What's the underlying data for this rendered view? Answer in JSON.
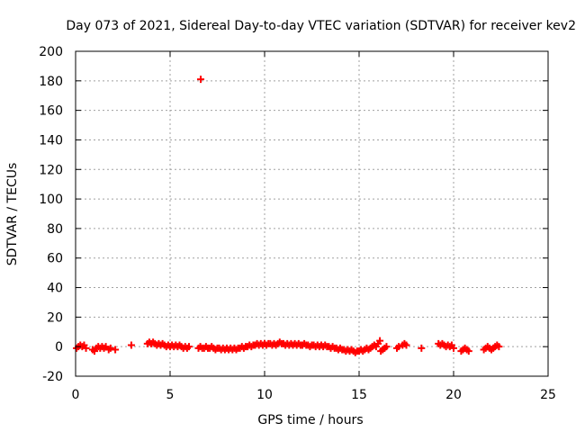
{
  "chart_data": {
    "type": "scatter",
    "title": "Day 073 of 2021, Sidereal Day-to-day VTEC variation (SDTVAR) for receiver kev2",
    "xlabel": "GPS time / hours",
    "ylabel": "SDTVAR / TECUs",
    "xlim": [
      0,
      25
    ],
    "ylim": [
      -20,
      200
    ],
    "xticks": [
      0,
      5,
      10,
      15,
      20,
      25
    ],
    "yticks": [
      -20,
      0,
      20,
      40,
      60,
      80,
      100,
      120,
      140,
      160,
      180,
      200
    ],
    "grid": true,
    "marker": "+",
    "color": "#ff0000",
    "series": [
      {
        "name": "SDTVAR",
        "points": [
          [
            0.05,
            -1
          ],
          [
            0.15,
            0
          ],
          [
            0.25,
            1
          ],
          [
            0.35,
            0
          ],
          [
            0.45,
            1
          ],
          [
            0.55,
            -1
          ],
          [
            0.9,
            -2
          ],
          [
            1.0,
            -3
          ],
          [
            1.1,
            -1
          ],
          [
            1.2,
            0
          ],
          [
            1.3,
            -1
          ],
          [
            1.4,
            0
          ],
          [
            1.5,
            -1
          ],
          [
            1.6,
            0
          ],
          [
            1.75,
            -2
          ],
          [
            1.85,
            -1
          ],
          [
            2.1,
            -2
          ],
          [
            2.95,
            1
          ],
          [
            3.8,
            2
          ],
          [
            3.9,
            3
          ],
          [
            4.0,
            2
          ],
          [
            4.1,
            3
          ],
          [
            4.2,
            2
          ],
          [
            4.3,
            1
          ],
          [
            4.4,
            2
          ],
          [
            4.5,
            1
          ],
          [
            4.6,
            2
          ],
          [
            4.7,
            1
          ],
          [
            4.8,
            0
          ],
          [
            4.9,
            1
          ],
          [
            5.0,
            0
          ],
          [
            5.1,
            1
          ],
          [
            5.2,
            0
          ],
          [
            5.3,
            1
          ],
          [
            5.4,
            0
          ],
          [
            5.5,
            1
          ],
          [
            5.6,
            0
          ],
          [
            5.7,
            -1
          ],
          [
            5.8,
            0
          ],
          [
            5.9,
            -1
          ],
          [
            6.0,
            0
          ],
          [
            6.62,
            181
          ],
          [
            6.5,
            -1
          ],
          [
            6.6,
            0
          ],
          [
            6.7,
            -1
          ],
          [
            6.8,
            -1
          ],
          [
            6.9,
            0
          ],
          [
            7.0,
            -1
          ],
          [
            7.1,
            -1
          ],
          [
            7.2,
            0
          ],
          [
            7.3,
            -1
          ],
          [
            7.4,
            -2
          ],
          [
            7.5,
            -1
          ],
          [
            7.6,
            -1
          ],
          [
            7.7,
            -2
          ],
          [
            7.8,
            -1
          ],
          [
            7.9,
            -2
          ],
          [
            8.0,
            -1
          ],
          [
            8.1,
            -2
          ],
          [
            8.2,
            -1
          ],
          [
            8.3,
            -2
          ],
          [
            8.4,
            -1
          ],
          [
            8.5,
            -2
          ],
          [
            8.6,
            -1
          ],
          [
            8.7,
            -1
          ],
          [
            8.8,
            0
          ],
          [
            8.9,
            -1
          ],
          [
            9.0,
            0
          ],
          [
            9.1,
            0
          ],
          [
            9.2,
            1
          ],
          [
            9.3,
            0
          ],
          [
            9.4,
            1
          ],
          [
            9.5,
            1
          ],
          [
            9.6,
            2
          ],
          [
            9.7,
            1
          ],
          [
            9.8,
            2
          ],
          [
            9.9,
            1
          ],
          [
            10.0,
            2
          ],
          [
            10.1,
            1
          ],
          [
            10.2,
            2
          ],
          [
            10.3,
            2
          ],
          [
            10.4,
            1
          ],
          [
            10.5,
            2
          ],
          [
            10.6,
            1
          ],
          [
            10.7,
            2
          ],
          [
            10.8,
            3
          ],
          [
            10.9,
            2
          ],
          [
            11.0,
            2
          ],
          [
            11.1,
            1
          ],
          [
            11.2,
            2
          ],
          [
            11.3,
            1
          ],
          [
            11.4,
            2
          ],
          [
            11.5,
            1
          ],
          [
            11.6,
            2
          ],
          [
            11.7,
            1
          ],
          [
            11.8,
            2
          ],
          [
            11.9,
            1
          ],
          [
            12.0,
            1
          ],
          [
            12.1,
            2
          ],
          [
            12.2,
            1
          ],
          [
            12.3,
            1
          ],
          [
            12.4,
            0
          ],
          [
            12.5,
            1
          ],
          [
            12.6,
            1
          ],
          [
            12.7,
            0
          ],
          [
            12.8,
            1
          ],
          [
            12.9,
            0
          ],
          [
            13.0,
            1
          ],
          [
            13.1,
            0
          ],
          [
            13.2,
            1
          ],
          [
            13.3,
            0
          ],
          [
            13.4,
            0
          ],
          [
            13.5,
            -1
          ],
          [
            13.6,
            0
          ],
          [
            13.7,
            -1
          ],
          [
            13.8,
            -1
          ],
          [
            13.9,
            -2
          ],
          [
            14.0,
            -1
          ],
          [
            14.1,
            -2
          ],
          [
            14.2,
            -2
          ],
          [
            14.3,
            -3
          ],
          [
            14.4,
            -2
          ],
          [
            14.5,
            -3
          ],
          [
            14.6,
            -2
          ],
          [
            14.7,
            -3
          ],
          [
            14.8,
            -4
          ],
          [
            14.9,
            -3
          ],
          [
            15.0,
            -3
          ],
          [
            15.1,
            -2
          ],
          [
            15.2,
            -3
          ],
          [
            15.3,
            -2
          ],
          [
            15.4,
            -1
          ],
          [
            15.5,
            -2
          ],
          [
            15.6,
            -1
          ],
          [
            15.7,
            0
          ],
          [
            15.8,
            1
          ],
          [
            15.9,
            0
          ],
          [
            16.0,
            2
          ],
          [
            16.1,
            4
          ],
          [
            16.15,
            -3
          ],
          [
            16.25,
            -2
          ],
          [
            16.35,
            -1
          ],
          [
            16.45,
            0
          ],
          [
            17.0,
            -1
          ],
          [
            17.1,
            0
          ],
          [
            17.3,
            1
          ],
          [
            17.4,
            2
          ],
          [
            17.5,
            1
          ],
          [
            18.3,
            -1
          ],
          [
            19.2,
            2
          ],
          [
            19.3,
            1
          ],
          [
            19.4,
            2
          ],
          [
            19.5,
            1
          ],
          [
            19.6,
            0
          ],
          [
            19.7,
            1
          ],
          [
            19.8,
            0
          ],
          [
            19.9,
            1
          ],
          [
            20.0,
            -1
          ],
          [
            20.4,
            -3
          ],
          [
            20.5,
            -2
          ],
          [
            20.6,
            -1
          ],
          [
            20.7,
            -2
          ],
          [
            20.8,
            -3
          ],
          [
            21.6,
            -2
          ],
          [
            21.7,
            -1
          ],
          [
            21.8,
            0
          ],
          [
            21.9,
            -1
          ],
          [
            22.0,
            -2
          ],
          [
            22.1,
            -1
          ],
          [
            22.2,
            0
          ],
          [
            22.3,
            1
          ],
          [
            22.4,
            0
          ]
        ]
      }
    ]
  }
}
